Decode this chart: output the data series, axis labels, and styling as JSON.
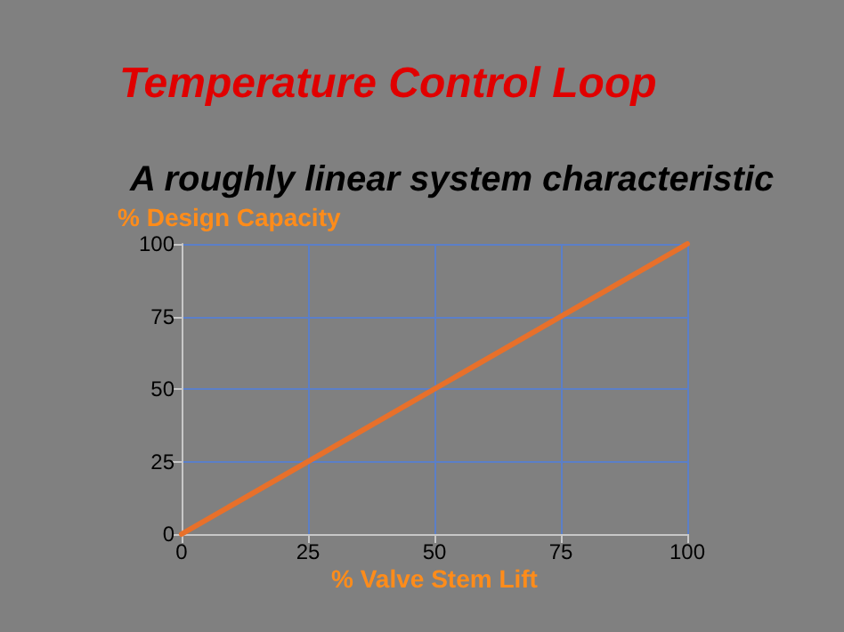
{
  "chart_data": {
    "type": "line",
    "title": "Temperature Control Loop",
    "subtitle": "A roughly linear system characteristic",
    "xlabel": "% Valve Stem Lift",
    "ylabel": "% Design Capacity",
    "x": [
      0,
      100
    ],
    "series": [
      {
        "color": "#e8702a",
        "values": [
          0,
          100
        ]
      }
    ],
    "xlim": [
      0,
      100
    ],
    "ylim": [
      0,
      100
    ],
    "xticks": [
      0,
      25,
      50,
      75,
      100
    ],
    "yticks": [
      0,
      25,
      50,
      75,
      100
    ],
    "grid": true,
    "marker": "none",
    "line_style": "solid"
  }
}
